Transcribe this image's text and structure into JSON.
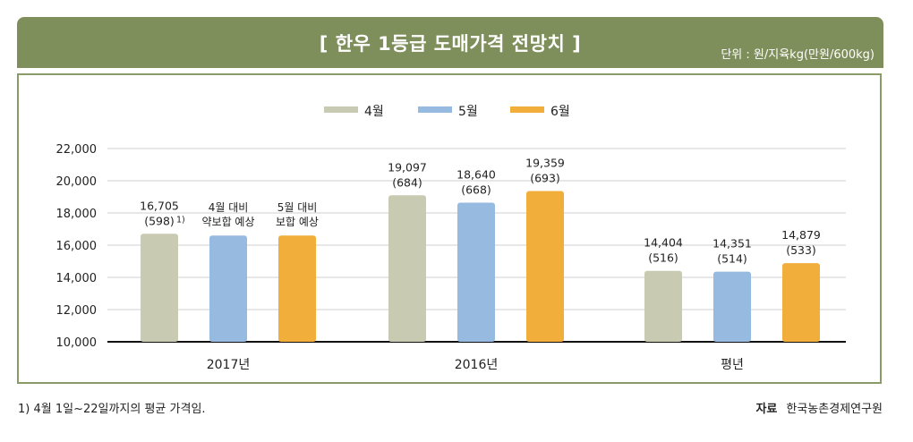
{
  "header": {
    "title": "[ 한우 1등급 도매가격 전망치 ]",
    "unit": "단위 : 원/지육kg(만원/600kg)"
  },
  "footer": {
    "footnote": "1) 4월 1일~22일까지의 평균 가격임.",
    "source_label": "자료",
    "source_value": "한국농촌경제연구원"
  },
  "colors": {
    "april": "#c9cab2",
    "may": "#97bae0",
    "june": "#f2ae3b",
    "header": "#7f8f5c",
    "frame": "#8a9a68"
  },
  "chart_data": {
    "type": "bar",
    "categories": [
      "2017년",
      "2016년",
      "평년"
    ],
    "series": [
      {
        "name": "4월",
        "values": [
          16705,
          19097,
          14404
        ]
      },
      {
        "name": "5월",
        "values": [
          16600,
          18640,
          14351
        ]
      },
      {
        "name": "6월",
        "values": [
          16600,
          19359,
          14879
        ]
      }
    ],
    "bar_labels": [
      [
        "16,705",
        "19,097",
        "14,404"
      ],
      [
        "",
        "18,640",
        "14,351"
      ],
      [
        "",
        "19,359",
        "14,879"
      ]
    ],
    "bar_sublabels": [
      [
        "(598)",
        "(684)",
        "(516)"
      ],
      [
        "",
        "(668)",
        "(514)"
      ],
      [
        "",
        "(693)",
        "(533)"
      ]
    ],
    "annotations": [
      {
        "category": 0,
        "series": 0,
        "text": "1)"
      },
      {
        "category": 0,
        "series": 1,
        "lines": [
          "4월 대비",
          "약보합 예상"
        ]
      },
      {
        "category": 0,
        "series": 2,
        "lines": [
          "5월 대비",
          "보합 예상"
        ]
      }
    ],
    "ylim": [
      10000,
      22000
    ],
    "yticks": [
      "10,000",
      "12,000",
      "14,000",
      "16,000",
      "18,000",
      "20,000",
      "22,000"
    ],
    "xlabel": "",
    "ylabel": "",
    "legend_position": "top-center",
    "grid": true
  }
}
